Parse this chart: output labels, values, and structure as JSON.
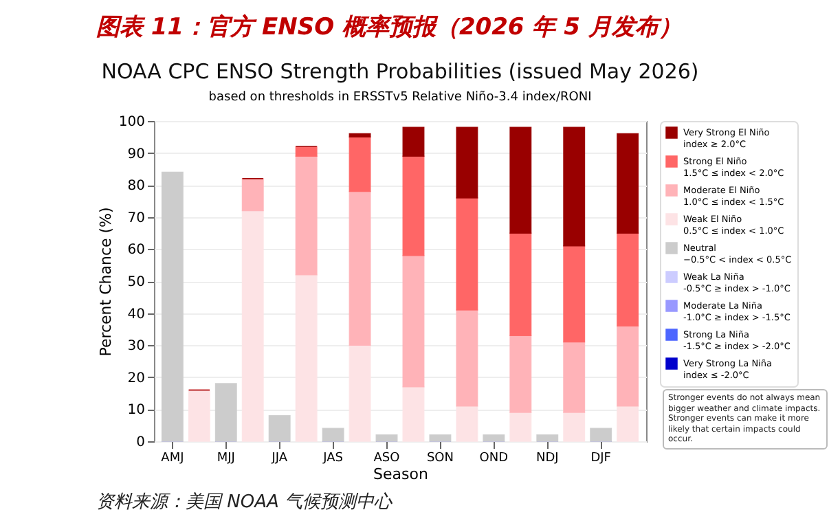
{
  "chart_data": {
    "type": "bar",
    "stacked": true,
    "title": "NOAA CPC ENSO Strength Probabilities (issued May 2026)",
    "subtitle": "based on thresholds in ERSSTv5 Relative Niño-3.4 index/RONI",
    "annotations": [
      "图表 11：官方 ENSO 概率预报（2026 年 5 月发布）",
      "Stronger events do not always mean bigger weather and climate impacts. Stronger events can make it more likely that certain impacts could occur.",
      "资料来源：美国 NOAA 气候预测中心"
    ],
    "xlabel": "Season",
    "ylabel": "Percent Chance (%)",
    "categories": [
      "AMJ",
      null,
      "MJJ",
      null,
      "JJA",
      null,
      "JAS",
      null,
      "ASO",
      null,
      "SON",
      null,
      "OND",
      null,
      "NDJ",
      null,
      "DJF",
      null
    ],
    "ylim": [
      0,
      100
    ],
    "yticks": [
      0,
      10,
      20,
      30,
      40,
      50,
      60,
      70,
      80,
      90,
      100
    ],
    "grid": "y",
    "legend": "right",
    "series": [
      {
        "name": "Very Strong La Niña\nindex ≤ -2.0°C",
        "color": "#0000cc",
        "values": [
          0,
          null,
          0,
          null,
          0,
          null,
          0,
          null,
          0,
          null,
          0,
          null,
          0,
          null,
          0,
          null,
          0,
          null
        ]
      },
      {
        "name": "Strong La Niña\n-1.5°C ≥ index > -2.0°C",
        "color": "#4d66ff",
        "values": [
          0,
          null,
          0,
          null,
          0,
          null,
          0,
          null,
          0,
          null,
          0,
          null,
          0,
          null,
          0,
          null,
          0,
          null
        ]
      },
      {
        "name": "Moderate La Niña\n-1.0°C ≥ index > -1.5°C",
        "color": "#9999ff",
        "values": [
          0,
          null,
          0,
          null,
          0,
          null,
          0,
          null,
          0,
          null,
          0,
          null,
          0,
          null,
          0,
          null,
          0,
          null
        ]
      },
      {
        "name": "Weak La Niña\n-0.5°C ≥ index > -1.0°C",
        "color": "#ccccff",
        "values": [
          0,
          null,
          0,
          null,
          0,
          null,
          0,
          null,
          0,
          null,
          0,
          null,
          0,
          null,
          0,
          null,
          0,
          null
        ]
      },
      {
        "name": "Neutral\n−0.5°C < index < 0.5°C",
        "color": "#cccccc",
        "values": [
          84,
          null,
          18,
          null,
          8,
          null,
          4,
          null,
          2,
          null,
          2,
          null,
          2,
          null,
          2,
          null,
          4,
          null
        ]
      },
      {
        "name": "Weak El Niño\n0.5°C ≤ index < 1.0°C",
        "color": "#fde3e5",
        "values": [
          null,
          16,
          null,
          72,
          null,
          52,
          null,
          30,
          null,
          17,
          null,
          11,
          null,
          9,
          null,
          9,
          null,
          11
        ]
      },
      {
        "name": "Moderate El Niño\n1.0°C ≤ index < 1.5°C",
        "color": "#ffb3b8",
        "values": [
          null,
          0,
          null,
          10,
          null,
          37,
          null,
          48,
          null,
          41,
          null,
          30,
          null,
          24,
          null,
          22,
          null,
          25
        ]
      },
      {
        "name": "Strong El Niño\n1.5°C ≤ index < 2.0°C",
        "color": "#ff6666",
        "values": [
          null,
          0,
          null,
          0,
          null,
          3,
          null,
          17,
          null,
          31,
          null,
          35,
          null,
          32,
          null,
          30,
          null,
          29
        ]
      },
      {
        "name": "Very Strong El Niño\nindex ≥ 2.0°C",
        "color": "#990000",
        "values": [
          null,
          0,
          null,
          0,
          null,
          0,
          null,
          1,
          null,
          9,
          null,
          22,
          null,
          33,
          null,
          37,
          null,
          31
        ]
      }
    ]
  }
}
